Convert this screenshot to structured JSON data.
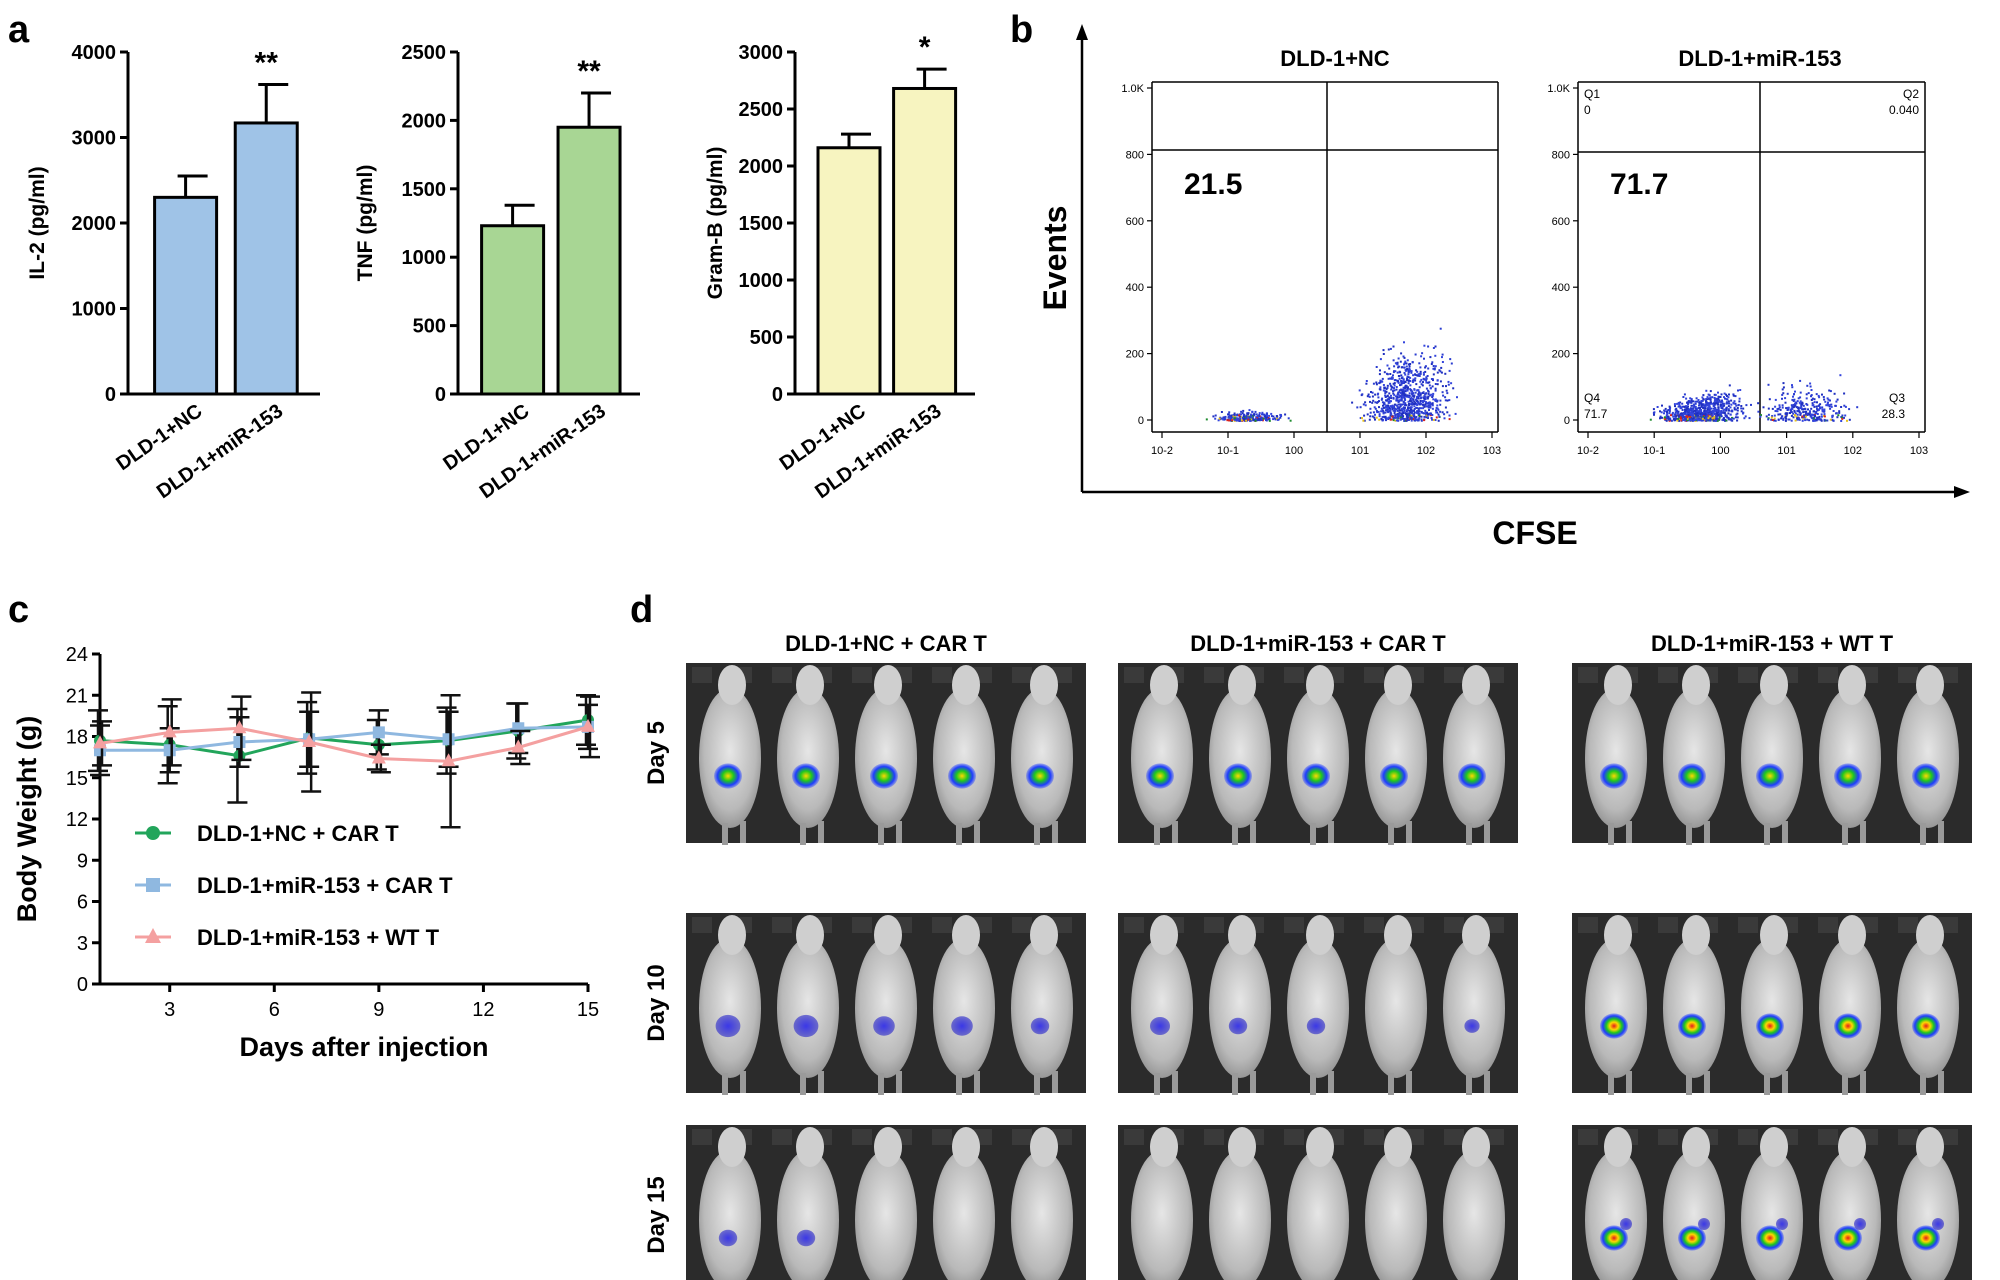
{
  "panels": {
    "a": "a",
    "b": "b",
    "c": "c",
    "d": "d"
  },
  "colors": {
    "il2_bar": "#9fc3e7",
    "tnf_bar": "#a8d694",
    "gramb_bar": "#f7f4c0",
    "nc_car": "#22a55b",
    "mir_car": "#8fb8e0",
    "mir_wt": "#f4a0a0"
  },
  "chart_data": [
    {
      "id": "il2",
      "type": "bar",
      "ylabel": "IL-2 (pg/ml)",
      "categories": [
        "DLD-1+NC",
        "DLD-1+miR-153"
      ],
      "values": [
        2300,
        3170
      ],
      "errors": [
        250,
        450
      ],
      "significance": [
        "",
        "**"
      ],
      "ylim": [
        0,
        4000
      ],
      "yticks": [
        "0",
        "1000",
        "2000",
        "3000",
        "4000"
      ]
    },
    {
      "id": "tnf",
      "type": "bar",
      "ylabel": "TNF (pg/ml)",
      "categories": [
        "DLD-1+NC",
        "DLD-1+miR-153"
      ],
      "values": [
        1230,
        1950
      ],
      "errors": [
        150,
        250
      ],
      "significance": [
        "",
        "**"
      ],
      "ylim": [
        0,
        2500
      ],
      "yticks": [
        "0",
        "500",
        "1000",
        "1500",
        "2000",
        "2500"
      ]
    },
    {
      "id": "gramb",
      "type": "bar",
      "ylabel": "Gram-B (pg/ml)",
      "categories": [
        "DLD-1+NC",
        "DLD-1+miR-153"
      ],
      "values": [
        2160,
        2680
      ],
      "errors": [
        120,
        170
      ],
      "significance": [
        "",
        "*"
      ],
      "ylim": [
        0,
        3000
      ],
      "yticks": [
        "0",
        "500",
        "1000",
        "1500",
        "2000",
        "2500",
        "3000"
      ]
    },
    {
      "id": "flow",
      "type": "scatter",
      "xlabel": "CFSE",
      "ylabel": "Events",
      "xticks": [
        "10-2",
        "10-1",
        "100",
        "101",
        "102",
        "103"
      ],
      "yticks": [
        "0",
        "200",
        "400",
        "600",
        "800",
        "1.0K"
      ],
      "plots": [
        {
          "title": "DLD-1+NC",
          "big_value": "21.5",
          "quadrants": {}
        },
        {
          "title": "DLD-1+miR-153",
          "big_value": "71.7",
          "quadrants": {
            "Q1": "Q1",
            "Q1_val": "0",
            "Q2": "Q2",
            "Q2_val": "0.040",
            "Q3": "Q3",
            "Q3_val": "28.3",
            "Q4": "Q4",
            "Q4_val": "71.7"
          }
        }
      ]
    },
    {
      "id": "bodyweight",
      "type": "line",
      "xlabel": "Days after injection",
      "ylabel": "Body Weight (g)",
      "xlim": [
        1,
        15
      ],
      "ylim": [
        0,
        24
      ],
      "xticks": [
        3,
        6,
        9,
        12,
        15
      ],
      "yticks": [
        0,
        3,
        6,
        9,
        12,
        15,
        18,
        21,
        24
      ],
      "x": [
        1,
        3,
        5,
        7,
        9,
        11,
        13,
        15
      ],
      "series": [
        {
          "name": "DLD-1+NC + CAR T",
          "marker": "circle",
          "values": [
            17.7,
            17.4,
            16.6,
            17.9,
            17.4,
            17.7,
            18.4,
            19.2
          ],
          "errors": [
            2.2,
            2.8,
            3.4,
            2.6,
            1.8,
            2.4,
            2.0,
            1.8
          ]
        },
        {
          "name": "DLD-1+miR-153 + CAR T",
          "marker": "square",
          "values": [
            17.0,
            17.0,
            17.6,
            17.8,
            18.3,
            17.8,
            18.6,
            18.7
          ],
          "errors": [
            1.8,
            1.6,
            1.8,
            2.0,
            1.6,
            2.0,
            1.8,
            1.6
          ]
        },
        {
          "name": "DLD-1+miR-153 + WT T",
          "marker": "triangle",
          "values": [
            17.5,
            18.3,
            18.6,
            17.6,
            16.4,
            16.2,
            17.2,
            18.7
          ],
          "errors": [
            1.6,
            2.4,
            2.3,
            3.6,
            1.0,
            4.8,
            1.2,
            2.2
          ]
        }
      ]
    }
  ],
  "imaging": {
    "groups": [
      "DLD-1+NC + CAR T",
      "DLD-1+miR-153 + CAR T",
      "DLD-1+miR-153 + WT T"
    ],
    "days": [
      "Day 5",
      "Day 10",
      "Day 15"
    ],
    "signal": [
      [
        [
          1,
          1,
          1,
          1,
          1
        ],
        [
          1,
          1,
          1,
          1,
          1
        ],
        [
          1,
          1,
          1,
          1,
          1
        ]
      ],
      [
        [
          0.8,
          0.8,
          0.6,
          0.6,
          0.4
        ],
        [
          0.5,
          0.4,
          0.4,
          0.0,
          0.2
        ],
        [
          1,
          1,
          1,
          1,
          1
        ]
      ],
      [
        [
          0.4,
          0.4,
          0.0,
          0.0,
          0.0
        ],
        [
          0.0,
          0.0,
          0.0,
          0.0,
          0.0
        ],
        [
          1.2,
          1.2,
          1.2,
          1.2,
          1.0
        ]
      ]
    ]
  }
}
